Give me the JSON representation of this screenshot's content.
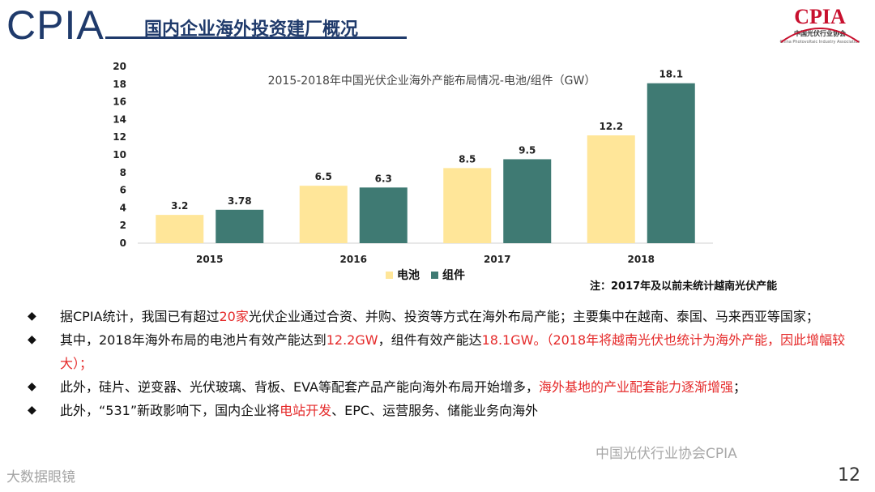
{
  "header": {
    "logo_text": "CPIA",
    "title": "国内企业海外投资建厂概况",
    "org_logo_text": "CPIA",
    "org_logo_sub": "中国光伏行业协会",
    "org_logo_en": "China Photovoltaic Industry Association"
  },
  "colors": {
    "series_cell": "#ffe699",
    "series_module": "#3f7a73",
    "title_blue": "#1f3a6b",
    "highlight_red": "#e52a2a"
  },
  "chart_data": {
    "type": "bar",
    "title": "2015-2018年中国光伏企业海外产能布局情况-电池/组件（GW）",
    "categories": [
      "2015",
      "2016",
      "2017",
      "2018"
    ],
    "series": [
      {
        "name": "电池",
        "values": [
          3.2,
          6.5,
          8.5,
          12.2
        ],
        "labels": [
          "3.2",
          "6.5",
          "8.5",
          "12.2"
        ]
      },
      {
        "name": "组件",
        "values": [
          3.78,
          6.3,
          9.5,
          18.1
        ],
        "labels": [
          "3.78",
          "6.3",
          "9.5",
          "18.1"
        ]
      }
    ],
    "yticks": [
      "0",
      "2",
      "4",
      "6",
      "8",
      "10",
      "12",
      "14",
      "16",
      "18",
      "20"
    ],
    "ylim": [
      0,
      20
    ],
    "xlabel": "",
    "ylabel": "",
    "legend": "bottom-center",
    "grid": false
  },
  "legend": {
    "cell": "电池",
    "module": "组件"
  },
  "note": "注：2017年及以前未统计越南光伏产能",
  "bullets": [
    {
      "mark": "◆",
      "parts": [
        {
          "text": "据CPIA统计，我国已有超过",
          "hl": false
        },
        {
          "text": "20家",
          "hl": true
        },
        {
          "text": "光伏企业通过合资、并购、投资等方式在海外布局产能；主要集中在越南、泰国、马来西亚等国家；",
          "hl": false
        }
      ]
    },
    {
      "mark": "◆",
      "parts": [
        {
          "text": "其中，2018年海外布局的电池片有效产能达到",
          "hl": false
        },
        {
          "text": "12.2GW",
          "hl": true
        },
        {
          "text": "，组件有效产能达",
          "hl": false
        },
        {
          "text": "18.1GW。（2018年将越南光伏也统计为海外产能，因此增幅较大）；",
          "hl": true
        }
      ]
    },
    {
      "mark": "◆",
      "parts": [
        {
          "text": "此外，硅片、逆变器、光伏玻璃、背板、EVA等配套产品产能向海外布局开始增多，",
          "hl": false
        },
        {
          "text": "海外基地的产业配套能力逐渐增强",
          "hl": true
        },
        {
          "text": "；",
          "hl": false
        }
      ]
    },
    {
      "mark": "◆",
      "parts": [
        {
          "text": "此外，“531”新政影响下，国内企业将",
          "hl": false
        },
        {
          "text": "电站开发",
          "hl": true
        },
        {
          "text": "、EPC、运营服务、储能业务向海外",
          "hl": false
        }
      ]
    }
  ],
  "watermarks": {
    "left": "大数据眼镜",
    "right": "中国光伏行业协会CPIA"
  },
  "page_number": "12"
}
